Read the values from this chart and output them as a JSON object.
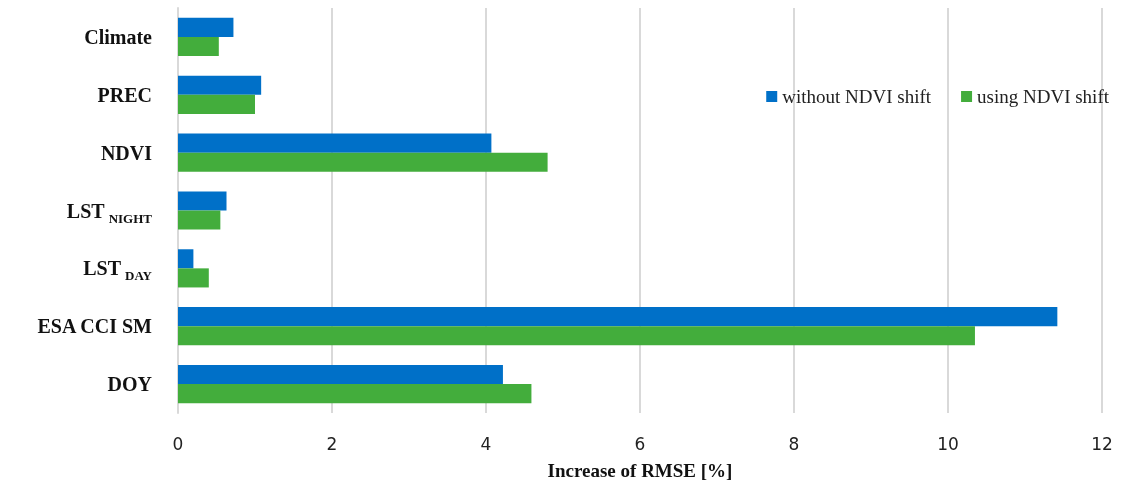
{
  "chart_data": {
    "type": "bar",
    "orientation": "horizontal",
    "xlabel": "Increase of RMSE [%]",
    "categories": [
      "Climate",
      "PREC",
      "NDVI",
      "LST$_{NIGHT}$",
      "LST$_{DAY}$",
      "ESA CCI SM",
      "DOY"
    ],
    "series": [
      {
        "name": "without NDVI shift",
        "color": "#0070c8",
        "values": [
          0.72,
          1.08,
          4.07,
          0.63,
          0.2,
          11.42,
          4.22
        ]
      },
      {
        "name": "using NDVI shift",
        "color": "#43ad3c",
        "values": [
          0.53,
          1.0,
          4.8,
          0.55,
          0.4,
          10.35,
          4.59
        ]
      }
    ],
    "xlim": [
      0,
      12
    ],
    "xticks": [
      0,
      2,
      4,
      6,
      8,
      10,
      12
    ],
    "grid": "x",
    "legend": "top right"
  }
}
